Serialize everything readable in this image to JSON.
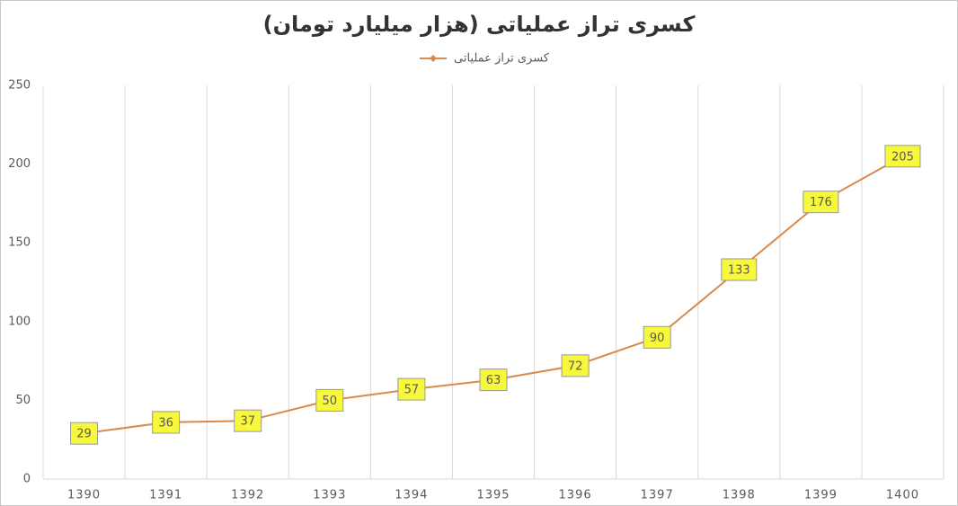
{
  "chart_data": {
    "type": "line",
    "title": "کسری تراز عملیاتی (هزار میلیارد تومان)",
    "categories": [
      "1390",
      "1391",
      "1392",
      "1393",
      "1394",
      "1395",
      "1396",
      "1397",
      "1398",
      "1399",
      "1400"
    ],
    "series": [
      {
        "name": "کسری تراز عملیاتی",
        "color": "#d9894a",
        "values": [
          29,
          36,
          37,
          50,
          57,
          63,
          72,
          90,
          133,
          176,
          205
        ]
      }
    ],
    "ylim": [
      0,
      250
    ],
    "yticks": [
      0,
      50,
      100,
      150,
      200,
      250
    ],
    "grid": true,
    "legend": "top",
    "data_labels": true,
    "data_label_color": "#f7f73c"
  }
}
